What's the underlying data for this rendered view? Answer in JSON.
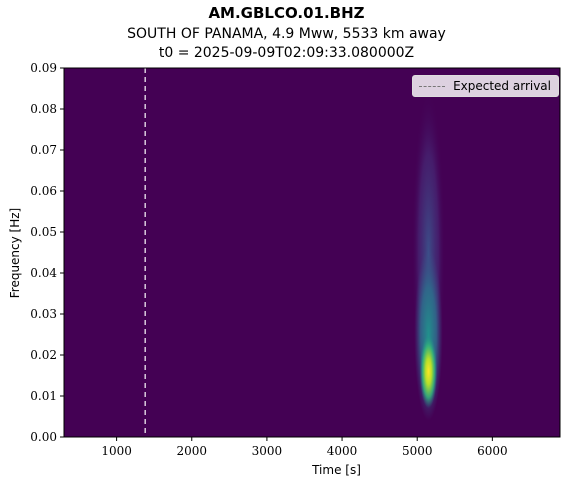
{
  "header": {
    "title": "AM.GBLCO.01.BHZ",
    "subtitle1": "SOUTH OF PANAMA, 4.9 Mww, 5533 km away",
    "subtitle2": "t0 = 2025-09-09T02:09:33.080000Z"
  },
  "chart_data": {
    "type": "heatmap",
    "title": "AM.GBLCO.01.BHZ",
    "xlabel": "Time [s]",
    "ylabel": "Frequency [Hz]",
    "xlim": [
      300,
      6900
    ],
    "ylim": [
      0.0,
      0.09
    ],
    "x_ticks": [
      1000,
      2000,
      3000,
      4000,
      5000,
      6000
    ],
    "y_ticks": [
      0.0,
      0.01,
      0.02,
      0.03,
      0.04,
      0.05,
      0.06,
      0.07,
      0.08,
      0.09
    ],
    "x_tick_labels": [
      "1000",
      "2000",
      "3000",
      "4000",
      "5000",
      "6000"
    ],
    "y_tick_labels": [
      "0.00",
      "0.01",
      "0.02",
      "0.03",
      "0.04",
      "0.05",
      "0.06",
      "0.07",
      "0.08",
      "0.09"
    ],
    "colormap": "viridis",
    "background_color": "#440154",
    "energy_blob": {
      "time_center": 5150,
      "freq_peak": 0.016,
      "time_spread": 70,
      "freq_extent": [
        0.005,
        0.085
      ]
    },
    "expected_arrival": {
      "time": 1380,
      "style": "dashed",
      "color": "#ffffff"
    },
    "legend": {
      "entries": [
        "Expected arrival"
      ],
      "placement": "top-right"
    },
    "grid": false
  }
}
